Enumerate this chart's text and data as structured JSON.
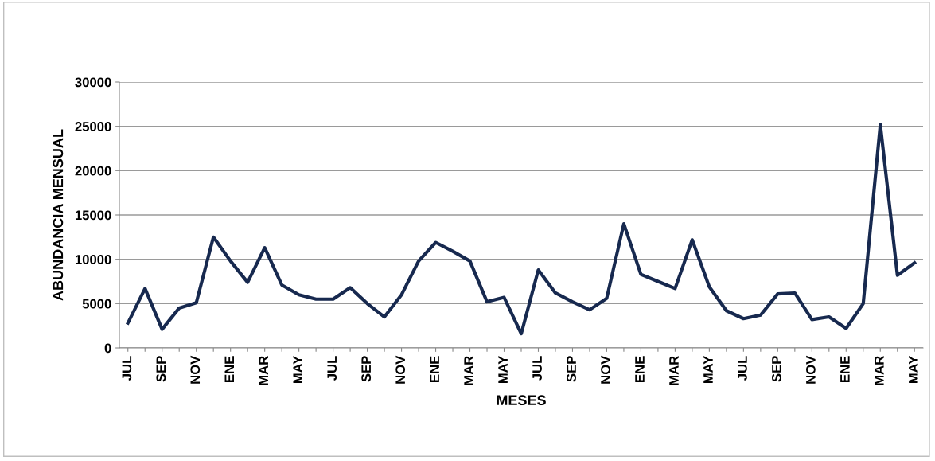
{
  "chart_data": {
    "type": "line",
    "xlabel": "MESES",
    "ylabel": "ABUNDANCIA MENSUAL",
    "categories": [
      "JUL",
      null,
      "SEP",
      null,
      "NOV",
      null,
      "ENE",
      null,
      "MAR",
      null,
      "MAY",
      null,
      "JUL",
      null,
      "SEP",
      null,
      "NOV",
      null,
      "ENE",
      null,
      "MAR",
      null,
      "MAY",
      null,
      "JUL",
      null,
      "SEP",
      null,
      "NOV",
      null,
      "ENE",
      null,
      "MAR",
      null,
      "MAY",
      null,
      "JUL",
      null,
      "SEP",
      null,
      "NOV",
      null,
      "ENE",
      null,
      "MAR",
      null,
      "MAY"
    ],
    "series": [
      {
        "color": "#17294f",
        "values": [
          2800,
          6700,
          2100,
          4500,
          5100,
          12500,
          9800,
          7400,
          11300,
          7100,
          6000,
          5500,
          5500,
          6800,
          5000,
          3500,
          6000,
          9800,
          11900,
          10900,
          9800,
          5200,
          5700,
          1600,
          8800,
          6200,
          5200,
          4300,
          5600,
          14000,
          8300,
          7500,
          6700,
          12200,
          6900,
          4200,
          3300,
          3700,
          6100,
          6200,
          3200,
          3500,
          2200,
          5000,
          25200,
          8200,
          9600
        ]
      }
    ],
    "ylim": [
      0,
      30000
    ],
    "yticks": [
      0,
      5000,
      10000,
      15000,
      20000,
      25000,
      30000
    ],
    "grid": "y",
    "marker": "none",
    "line_style": "solid"
  }
}
